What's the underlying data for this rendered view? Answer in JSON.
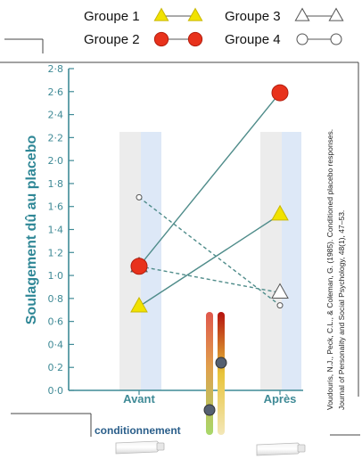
{
  "chart_data": {
    "type": "line",
    "categories": [
      "Avant",
      "Après"
    ],
    "ylabel": "Soulagement dû au placebo",
    "ylim": [
      0,
      2.8
    ],
    "yticks": [
      "0·0",
      "0·2",
      "0·4",
      "0·6",
      "0·8",
      "1·0",
      "1·2",
      "1·4",
      "1·6",
      "1·8",
      "2·0",
      "2·2",
      "2·4",
      "2·6",
      "2·8"
    ],
    "legend_position": "top",
    "series": [
      {
        "name": "Groupe 1",
        "values": [
          0.73,
          1.53
        ],
        "marker": "triangle-filled",
        "color": "#f1e200",
        "line": "solid"
      },
      {
        "name": "Groupe 2",
        "values": [
          1.08,
          2.59
        ],
        "marker": "circle-filled",
        "color": "#e8321c",
        "line": "solid"
      },
      {
        "name": "Groupe 3",
        "values": [
          1.08,
          0.85
        ],
        "marker": "triangle-open",
        "color": "#ffffff",
        "line": "dashed"
      },
      {
        "name": "Groupe 4",
        "values": [
          1.68,
          0.74
        ],
        "marker": "circle-open",
        "color": "#ffffff",
        "line": "dashed"
      }
    ],
    "colors": {
      "axis": "#3f8a96",
      "line": "#4f8c8a",
      "shade_grey": "#ececec",
      "shade_blue": "#dde8f7"
    },
    "annotation": "conditionnement",
    "citation": {
      "line1": "Voudouris, N.J., Peck, C.L., & Coleman, G. (1985). Conditioned placebo responses.",
      "line2": "Journal of Personality and Social Psychology, 48(1), 47–53."
    }
  }
}
